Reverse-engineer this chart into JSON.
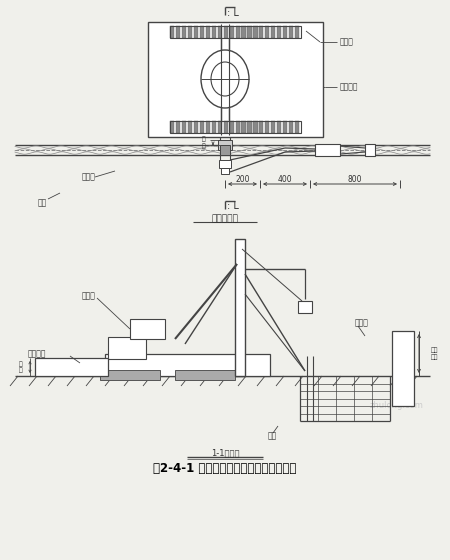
{
  "title": "图2-4-1 抓斗与套管钻机相对位置示意图",
  "plan_label": "平面示意图",
  "elev_label": "1-1剖置图",
  "bg_color": "#f0f0eb",
  "line_color": "#444444",
  "text_color": "#333333",
  "fig_width": 4.5,
  "fig_height": 5.6,
  "dpi": 100
}
